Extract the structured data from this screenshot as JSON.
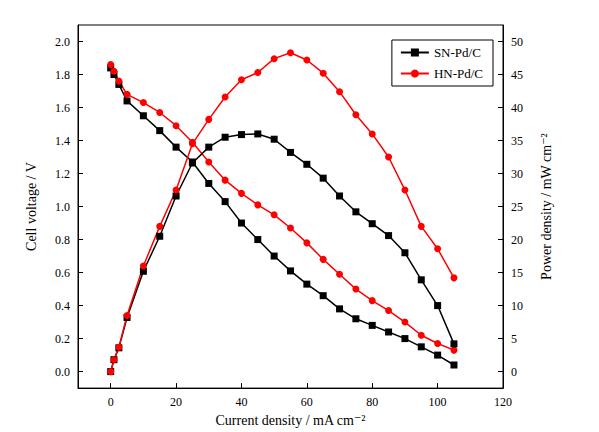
{
  "chart_data": {
    "type": "line",
    "x_label": "Current density / mA cm⁻²",
    "y_label": "Cell voltage / V",
    "y2_label": "Power density / mW cm⁻²",
    "x": [
      0,
      1,
      2.5,
      5,
      10,
      15,
      20,
      25,
      30,
      35,
      40,
      45,
      50,
      55,
      60,
      65,
      70,
      75,
      80,
      85,
      90,
      95,
      100,
      105
    ],
    "xlim": [
      -10,
      120
    ],
    "xticks": [
      0,
      20,
      40,
      60,
      80,
      100,
      120
    ],
    "ylim": [
      -0.1,
      2.1
    ],
    "yticks": [
      {
        "value": 0,
        "label": "0.0"
      },
      {
        "value": 0.2,
        "label": "0.2"
      },
      {
        "value": 0.4,
        "label": "0.4"
      },
      {
        "value": 0.6,
        "label": "0.6"
      },
      {
        "value": 0.8,
        "label": "0.8"
      },
      {
        "value": 1.0,
        "label": "1.0"
      },
      {
        "value": 1.2,
        "label": "1.2"
      },
      {
        "value": 1.4,
        "label": "1.4"
      },
      {
        "value": 1.6,
        "label": "1.6"
      },
      {
        "value": 1.8,
        "label": "1.8"
      },
      {
        "value": 2.0,
        "label": "2.0"
      }
    ],
    "y2lim": [
      -2.5,
      52.5
    ],
    "y2ticks": [
      0,
      5,
      10,
      15,
      20,
      25,
      30,
      35,
      40,
      45,
      50
    ],
    "grid": false,
    "legend": "upper right",
    "series": [
      {
        "name": "SN-Pd/C",
        "color": "#000000",
        "marker": "square",
        "axis": "y",
        "values": [
          1.84,
          1.8,
          1.74,
          1.64,
          1.55,
          1.46,
          1.36,
          1.27,
          1.14,
          1.03,
          0.9,
          0.8,
          0.7,
          0.61,
          0.53,
          0.46,
          0.38,
          0.32,
          0.28,
          0.24,
          0.2,
          0.15,
          0.1,
          0.04
        ]
      },
      {
        "name": "HN-Pd/C",
        "color": "#ff0000",
        "marker": "circle",
        "axis": "y",
        "values": [
          1.86,
          1.82,
          1.76,
          1.68,
          1.63,
          1.57,
          1.49,
          1.39,
          1.27,
          1.16,
          1.08,
          1.01,
          0.95,
          0.87,
          0.78,
          0.68,
          0.59,
          0.5,
          0.43,
          0.37,
          0.3,
          0.22,
          0.17,
          0.13
        ]
      },
      {
        "name": "SN-Pd/C",
        "color": "#000000",
        "marker": "square",
        "axis": "y2",
        "values": [
          0,
          1.8,
          3.6,
          8.2,
          15.2,
          20.5,
          26.6,
          31.6,
          34.0,
          35.5,
          35.9,
          36.0,
          35.2,
          33.2,
          31.4,
          29.3,
          26.6,
          24.2,
          22.4,
          20.6,
          18.0,
          13.9,
          10.0,
          4.2
        ]
      },
      {
        "name": "HN-Pd/C",
        "color": "#ff0000",
        "marker": "circle",
        "axis": "y2",
        "values": [
          0,
          1.8,
          3.7,
          8.5,
          16.0,
          22.0,
          27.5,
          34.5,
          38.2,
          41.6,
          44.2,
          45.3,
          47.4,
          48.3,
          47.2,
          45.2,
          42.4,
          38.9,
          36.0,
          32.5,
          27.5,
          22.0,
          18.6,
          14.2
        ]
      }
    ]
  }
}
